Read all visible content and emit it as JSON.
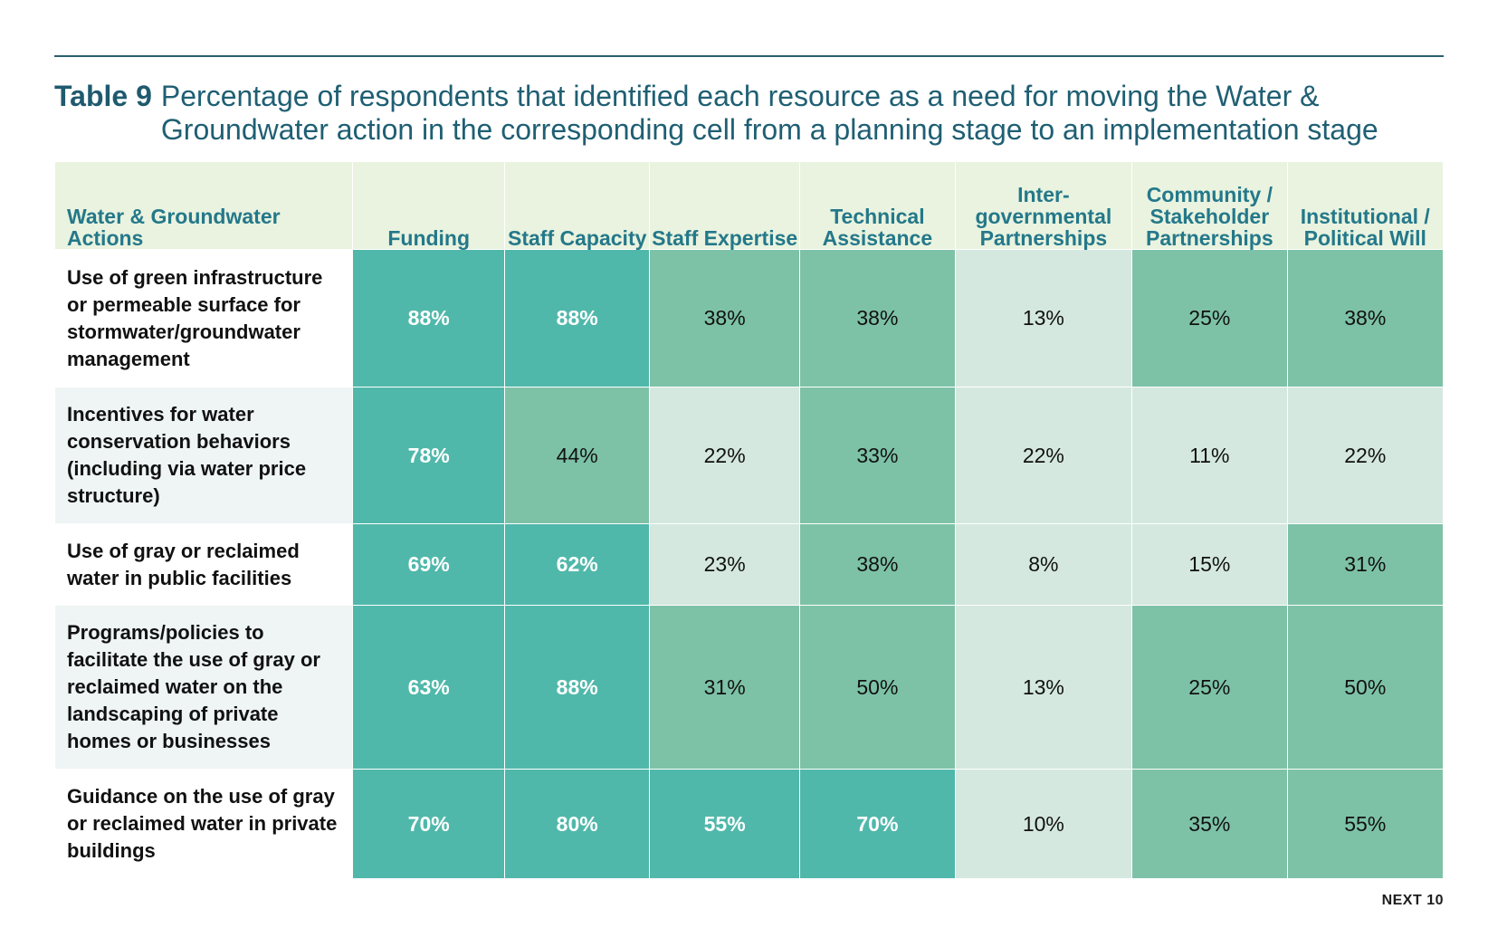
{
  "title": {
    "label": "Table 9",
    "text": "Percentage of respondents that identified each resource as a need for moving the Water & Groundwater action in the corresponding cell from a planning stage to an implementation stage"
  },
  "table": {
    "headers": [
      "Water & Groundwater Actions",
      "Funding",
      "Staff Capacity",
      "Staff Expertise",
      "Technical Assistance",
      "Inter-governmental Partnerships",
      "Community / Stakeholder Partnerships",
      "Institutional / Political Will"
    ],
    "rows": [
      {
        "action": "Use of green infrastructure or permeable surface for stormwater/groundwater management",
        "values": [
          "88%",
          "88%",
          "38%",
          "38%",
          "13%",
          "25%",
          "38%"
        ],
        "shades": [
          "dark",
          "dark",
          "mid",
          "mid",
          "light",
          "mid",
          "mid"
        ]
      },
      {
        "action": "Incentives for water conservation behaviors (including via water price structure)",
        "values": [
          "78%",
          "44%",
          "22%",
          "33%",
          "22%",
          "11%",
          "22%"
        ],
        "shades": [
          "dark",
          "mid",
          "light",
          "mid",
          "light",
          "light",
          "light"
        ]
      },
      {
        "action": "Use of gray or reclaimed water in public facilities",
        "values": [
          "69%",
          "62%",
          "23%",
          "38%",
          "8%",
          "15%",
          "31%"
        ],
        "shades": [
          "dark",
          "dark",
          "light",
          "mid",
          "light",
          "light",
          "mid"
        ]
      },
      {
        "action": "Programs/policies to facilitate the use of gray or reclaimed water on the landscaping of private homes or businesses",
        "values": [
          "63%",
          "88%",
          "31%",
          "50%",
          "13%",
          "25%",
          "50%"
        ],
        "shades": [
          "dark",
          "dark",
          "mid",
          "mid",
          "light",
          "mid",
          "mid"
        ]
      },
      {
        "action": "Guidance on the use of gray or reclaimed water in private buildings",
        "values": [
          "70%",
          "80%",
          "55%",
          "70%",
          "10%",
          "35%",
          "55%"
        ],
        "shades": [
          "dark",
          "dark",
          "dark",
          "dark",
          "light",
          "mid",
          "mid"
        ]
      }
    ]
  },
  "colors": {
    "dark": "#50b8aa",
    "mid": "#7dc2a7",
    "light": "#d4e8df",
    "header_bg": "#e9f3df",
    "title": "#1f5f73"
  },
  "footer": "NEXT 10"
}
